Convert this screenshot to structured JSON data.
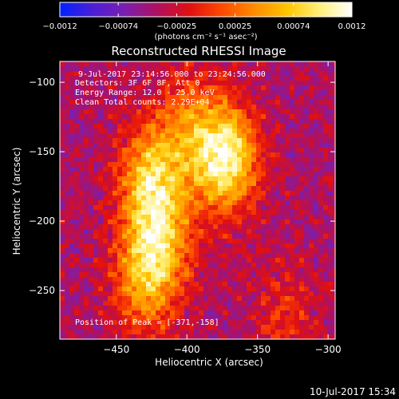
{
  "chart_data": [
    {
      "type": "colorbar",
      "colormap": [
        "#0022ff",
        "#4b1fd6",
        "#7a1fb0",
        "#b01060",
        "#e01010",
        "#ff4a00",
        "#ff8c00",
        "#ffc400",
        "#fff07a",
        "#ffffff"
      ],
      "range": [
        -0.0012,
        0.0012
      ],
      "tick_labels": [
        "−0.0012",
        "−0.00074",
        "−0.00025",
        "0.00025",
        "0.00074",
        "0.0012"
      ],
      "unit_label": "(photons cm⁻² s⁻¹ asec⁻²)"
    },
    {
      "type": "heatmap",
      "title": "Reconstructed RHESSI Image",
      "xlabel": "Heliocentric X (arcsec)",
      "ylabel": "Heliocentric Y (arcsec)",
      "xlim": [
        -490,
        -295
      ],
      "ylim": [
        -285,
        -85
      ],
      "x_ticks": [
        "−450",
        "−400",
        "−350",
        "−300"
      ],
      "y_ticks": [
        "−100",
        "−150",
        "−200",
        "−250"
      ],
      "peak": {
        "x": -371,
        "y": -158
      },
      "sources": [
        {
          "x": -373,
          "y": -155,
          "intensity": 1.0
        },
        {
          "x": -425,
          "y": -170,
          "intensity": 0.75
        },
        {
          "x": -420,
          "y": -215,
          "intensity": 0.6
        },
        {
          "x": -430,
          "y": -245,
          "intensity": 0.5
        },
        {
          "x": -400,
          "y": -130,
          "intensity": 0.4
        },
        {
          "x": -330,
          "y": -270,
          "intensity": 0.25
        }
      ],
      "annotations": [
        "9-Jul-2017 23:14:56.000 to 23:24:56.000",
        "Detectors: 3F 6F 8F, Att 0",
        "Energy Range: 12.0 - 25.0 keV",
        "Clean    Total counts: 2.29E+04"
      ],
      "peak_label": "Position of Peak = [-371,-158]"
    }
  ],
  "footer": {
    "timestamp": "10-Jul-2017 15:34"
  }
}
